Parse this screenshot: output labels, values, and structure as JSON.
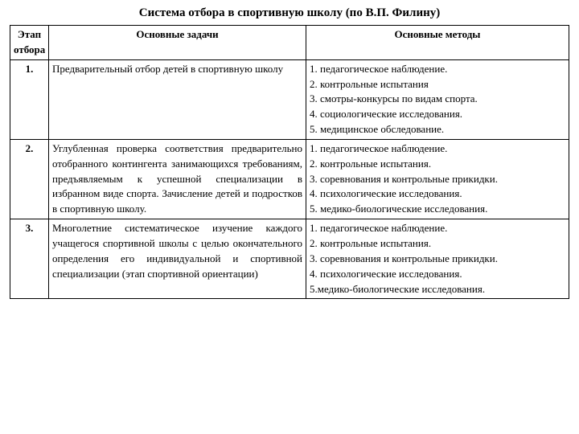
{
  "title": "Система отбора в спортивную школу (по В.П. Филину)",
  "headers": {
    "stage": "Этап отбора",
    "tasks": "Основные задачи",
    "methods": "Основные методы"
  },
  "rows": [
    {
      "stage": "1.",
      "tasks": "Предварительный отбор детей в спортивную школу",
      "methods": [
        "1. педагогическое наблюдение.",
        "2. контрольные испытания",
        "3. смотры-конкурсы по видам спорта.",
        "4. социологические исследования.",
        "5. медицинское обследование."
      ]
    },
    {
      "stage": "2.",
      "tasks": "Углубленная проверка соответствия предварительно отобранного контингента занимающихся требованиям, предъявляемым к успешной специализации в избранном виде спорта. Зачисление детей и подростков в спортивную школу.",
      "methods": [
        "1. педагогическое наблюдение.",
        "2. контрольные испытания.",
        "3. соревнования и контрольные прикидки.",
        "4. психологические исследования.",
        "5. медико-биологические исследования."
      ]
    },
    {
      "stage": "3.",
      "tasks": "Многолетние систематическое изучение каждого учащегося спортивной школы с целью окончательного определения его индивидуальной и спортивной специализации (этап спортивной ориентации)",
      "methods": [
        "1. педагогическое наблюдение.",
        "2. контрольные испытания.",
        "3. соревнования и контрольные прикидки.",
        "4. психологические исследования.",
        "5.медико-биологические исследования."
      ]
    }
  ],
  "colors": {
    "text": "#000000",
    "background": "#ffffff",
    "border": "#000000"
  },
  "typography": {
    "title_fontsize": 15,
    "body_fontsize": 13,
    "font_family": "Times New Roman"
  }
}
